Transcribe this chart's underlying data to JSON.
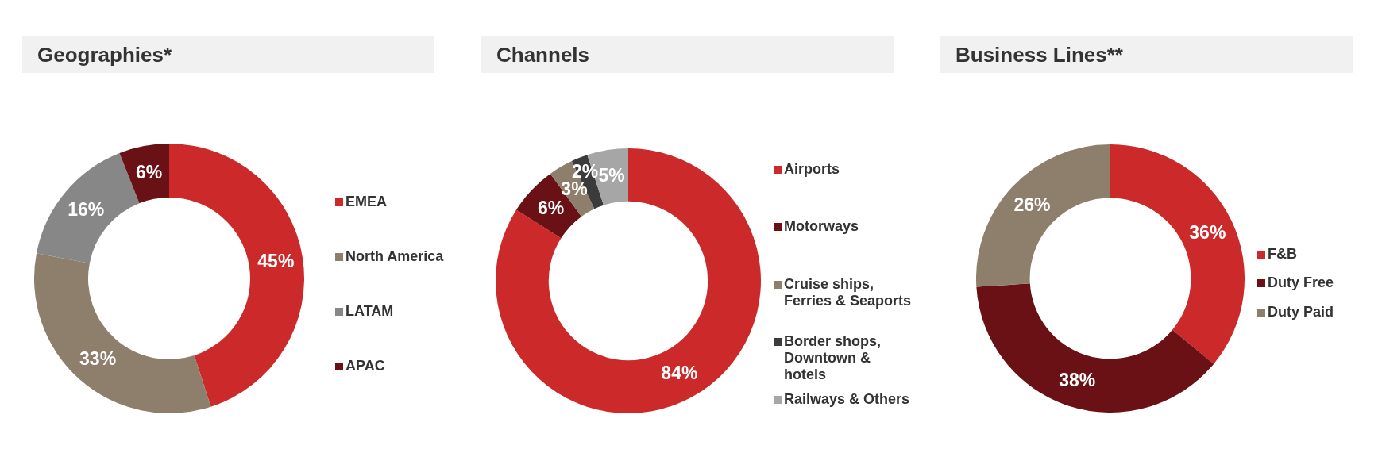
{
  "chart_data": [
    {
      "type": "donut",
      "title": "Geographies*",
      "categories": [
        "EMEA",
        "North America",
        "LATAM",
        "APAC"
      ],
      "values": [
        45,
        33,
        16,
        6
      ],
      "colors": [
        "#cc2a2a",
        "#8e7f6c",
        "#878787",
        "#6a1116"
      ],
      "value_labels": [
        "45%",
        "33%",
        "16%",
        "6%"
      ],
      "legend": "right"
    },
    {
      "type": "donut",
      "title": "Channels",
      "categories": [
        "Airports",
        "Motorways",
        "Cruise ships, Ferries & Seaports",
        "Border shops, Downtown & hotels",
        "Railways & Others"
      ],
      "values": [
        84,
        6,
        3,
        2,
        5
      ],
      "colors": [
        "#cc2a2a",
        "#6a1116",
        "#8e7f6c",
        "#3b3b3b",
        "#a6a6a6"
      ],
      "value_labels": [
        "84%",
        "6%",
        "3%",
        "2%",
        "5%"
      ],
      "legend": "right"
    },
    {
      "type": "donut",
      "title": "Business Lines**",
      "categories": [
        "F&B",
        "Duty Free",
        "Duty Paid"
      ],
      "values": [
        36,
        38,
        26
      ],
      "colors": [
        "#cc2a2a",
        "#6a1116",
        "#8e7f6c"
      ],
      "value_labels": [
        "36%",
        "38%",
        "26%"
      ],
      "legend": "right"
    }
  ]
}
